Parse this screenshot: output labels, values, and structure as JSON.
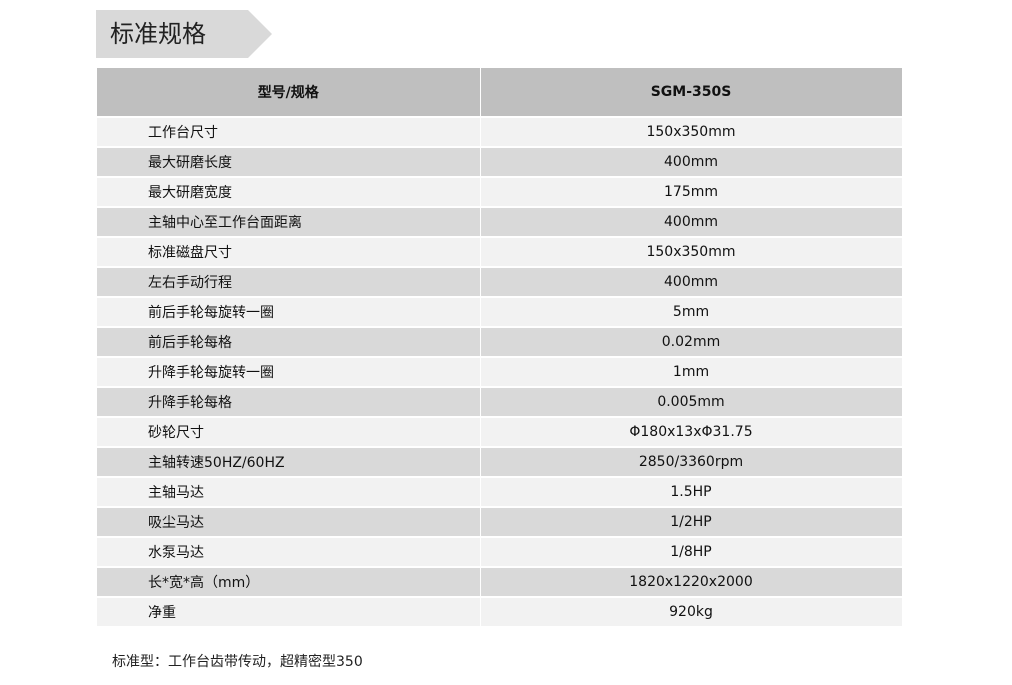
{
  "title": "标准规格",
  "table": {
    "headers": [
      "型号/规格",
      "SGM-350S"
    ],
    "rows": [
      [
        "工作台尺寸",
        "150x350mm"
      ],
      [
        "最大研磨长度",
        "400mm"
      ],
      [
        "最大研磨宽度",
        "175mm"
      ],
      [
        "主轴中心至工作台面距离",
        "400mm"
      ],
      [
        "标准磁盘尺寸",
        "150x350mm"
      ],
      [
        "左右手动行程",
        "400mm"
      ],
      [
        "前后手轮每旋转一圈",
        "5mm"
      ],
      [
        "前后手轮每格",
        "0.02mm"
      ],
      [
        "升降手轮每旋转一圈",
        "1mm"
      ],
      [
        "升降手轮每格",
        "0.005mm"
      ],
      [
        "砂轮尺寸",
        "Φ180x13xΦ31.75"
      ],
      [
        "主轴转速50HZ/60HZ",
        "2850/3360rpm"
      ],
      [
        "主轴马达",
        "1.5HP"
      ],
      [
        "吸尘马达",
        "1/2HP"
      ],
      [
        "水泵马达",
        "1/8HP"
      ],
      [
        "长*宽*高（mm）",
        "1820x1220x2000"
      ],
      [
        "净重",
        "920kg"
      ]
    ]
  },
  "note": "标准型：工作台齿带传动，超精密型350",
  "colors": {
    "header_bg": "#bfbfbf",
    "row_light": "#f2f2f2",
    "row_dark": "#d9d9d9",
    "title_bg": "#d9d9d9"
  }
}
